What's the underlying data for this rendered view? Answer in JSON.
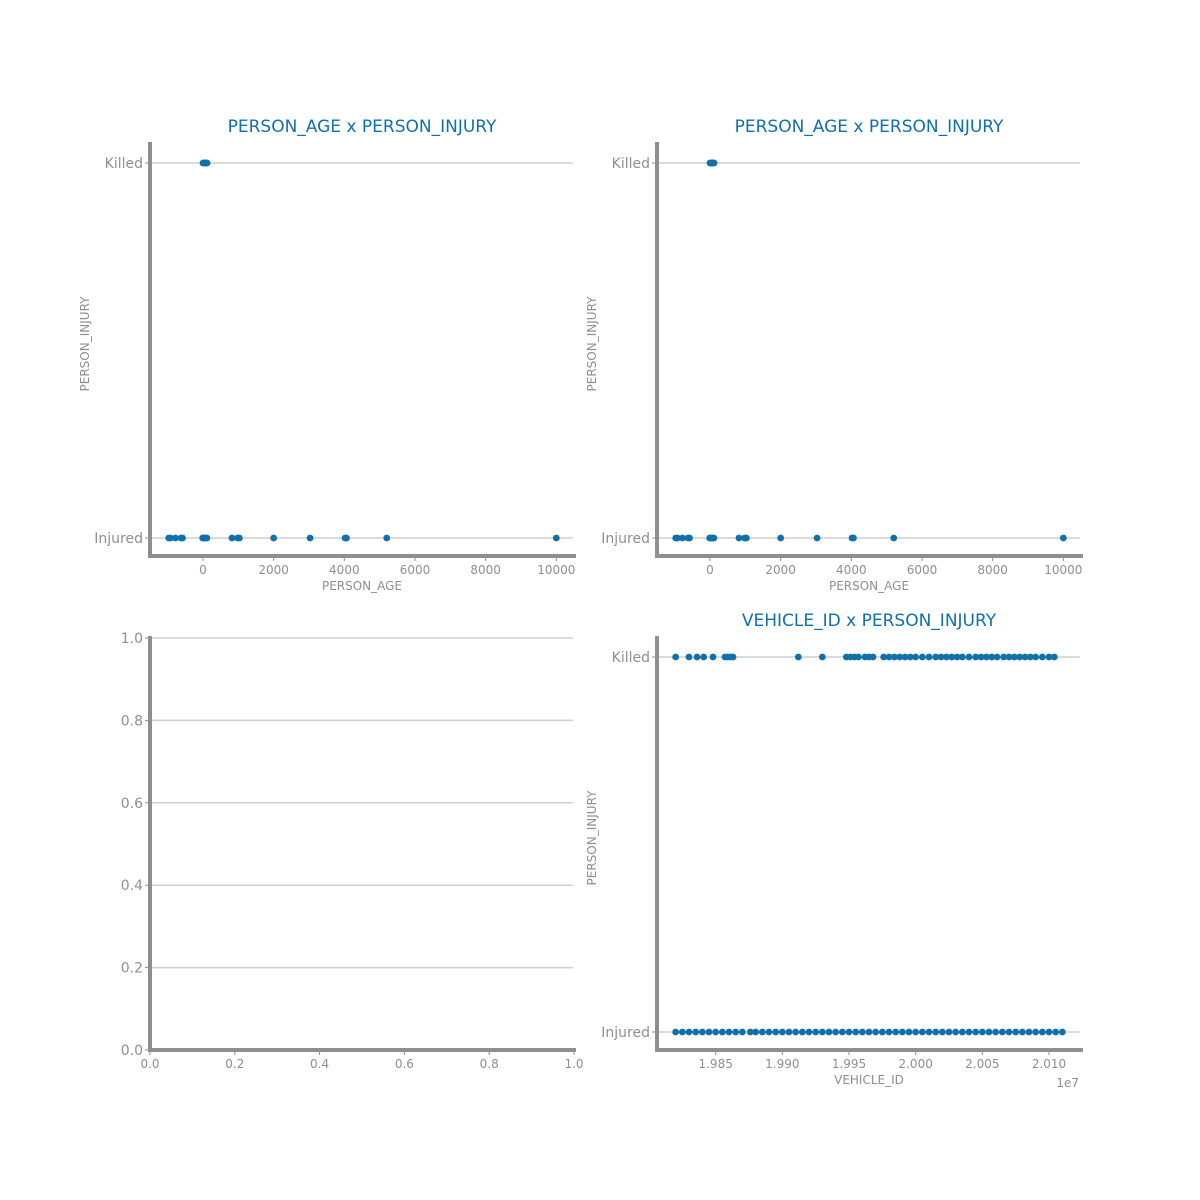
{
  "chart_data": [
    {
      "type": "scatter",
      "title": "PERSON_AGE x PERSON_INJURY",
      "xlabel": "PERSON_AGE",
      "ylabel": "PERSON_INJURY",
      "xlim": [
        -1500,
        10500
      ],
      "x_ticks": [
        0,
        2000,
        4000,
        6000,
        8000,
        10000
      ],
      "x_tick_labels": [
        "0",
        "2000",
        "4000",
        "6000",
        "8000",
        "10000"
      ],
      "x_offset_label": "",
      "y_categories": [
        "Injured",
        "Killed"
      ],
      "grid": true,
      "series": [
        {
          "values": [
            {
              "x": -970,
              "y": "Injured"
            },
            {
              "x": -920,
              "y": "Injured"
            },
            {
              "x": -780,
              "y": "Injured"
            },
            {
              "x": -620,
              "y": "Injured"
            },
            {
              "x": -580,
              "y": "Injured"
            },
            {
              "x": -10,
              "y": "Injured"
            },
            {
              "x": 20,
              "y": "Injured"
            },
            {
              "x": 50,
              "y": "Injured"
            },
            {
              "x": 80,
              "y": "Injured"
            },
            {
              "x": 110,
              "y": "Injured"
            },
            {
              "x": 820,
              "y": "Injured"
            },
            {
              "x": 980,
              "y": "Injured"
            },
            {
              "x": 1030,
              "y": "Injured"
            },
            {
              "x": 2000,
              "y": "Injured"
            },
            {
              "x": 3030,
              "y": "Injured"
            },
            {
              "x": 4020,
              "y": "Injured"
            },
            {
              "x": 4060,
              "y": "Injured"
            },
            {
              "x": 5200,
              "y": "Injured"
            },
            {
              "x": 10000,
              "y": "Injured"
            },
            {
              "x": 0,
              "y": "Killed"
            },
            {
              "x": 25,
              "y": "Killed"
            },
            {
              "x": 50,
              "y": "Killed"
            },
            {
              "x": 75,
              "y": "Killed"
            },
            {
              "x": 100,
              "y": "Killed"
            },
            {
              "x": 115,
              "y": "Killed"
            }
          ]
        }
      ]
    },
    {
      "type": "scatter",
      "title": "PERSON_AGE x PERSON_INJURY",
      "xlabel": "PERSON_AGE",
      "ylabel": "PERSON_INJURY",
      "xlim": [
        -1500,
        10500
      ],
      "x_ticks": [
        0,
        2000,
        4000,
        6000,
        8000,
        10000
      ],
      "x_tick_labels": [
        "0",
        "2000",
        "4000",
        "6000",
        "8000",
        "10000"
      ],
      "x_offset_label": "",
      "y_categories": [
        "Injured",
        "Killed"
      ],
      "grid": true,
      "series": [
        {
          "values": [
            {
              "x": -970,
              "y": "Injured"
            },
            {
              "x": -920,
              "y": "Injured"
            },
            {
              "x": -780,
              "y": "Injured"
            },
            {
              "x": -620,
              "y": "Injured"
            },
            {
              "x": -580,
              "y": "Injured"
            },
            {
              "x": -10,
              "y": "Injured"
            },
            {
              "x": 20,
              "y": "Injured"
            },
            {
              "x": 50,
              "y": "Injured"
            },
            {
              "x": 80,
              "y": "Injured"
            },
            {
              "x": 110,
              "y": "Injured"
            },
            {
              "x": 820,
              "y": "Injured"
            },
            {
              "x": 980,
              "y": "Injured"
            },
            {
              "x": 1030,
              "y": "Injured"
            },
            {
              "x": 2000,
              "y": "Injured"
            },
            {
              "x": 3030,
              "y": "Injured"
            },
            {
              "x": 4020,
              "y": "Injured"
            },
            {
              "x": 4060,
              "y": "Injured"
            },
            {
              "x": 5200,
              "y": "Injured"
            },
            {
              "x": 10000,
              "y": "Injured"
            },
            {
              "x": 0,
              "y": "Killed"
            },
            {
              "x": 25,
              "y": "Killed"
            },
            {
              "x": 50,
              "y": "Killed"
            },
            {
              "x": 75,
              "y": "Killed"
            },
            {
              "x": 100,
              "y": "Killed"
            },
            {
              "x": 115,
              "y": "Killed"
            }
          ]
        }
      ]
    },
    {
      "type": "scatter",
      "title": "",
      "xlabel": "",
      "ylabel": "",
      "xlim": [
        0,
        1
      ],
      "ylim": [
        0,
        1
      ],
      "x_ticks": [
        0,
        0.2,
        0.4,
        0.6,
        0.8,
        1.0
      ],
      "x_tick_labels": [
        "0.0",
        "0.2",
        "0.4",
        "0.6",
        "0.8",
        "1.0"
      ],
      "y_ticks": [
        0,
        0.2,
        0.4,
        0.6,
        0.8,
        1.0
      ],
      "y_tick_labels": [
        "0.0",
        "0.2",
        "0.4",
        "0.6",
        "0.8",
        "1.0"
      ],
      "grid": true,
      "series": []
    },
    {
      "type": "scatter",
      "title": "VEHICLE_ID x PERSON_INJURY",
      "xlabel": "VEHICLE_ID",
      "ylabel": "PERSON_INJURY",
      "xlim": [
        19806000,
        20124000
      ],
      "x_ticks": [
        19850000,
        19900000,
        19950000,
        20000000,
        20050000,
        20100000
      ],
      "x_tick_labels": [
        "1.985",
        "1.990",
        "1.995",
        "2.000",
        "2.005",
        "2.010"
      ],
      "x_offset_label": "1e7",
      "y_categories": [
        "Injured",
        "Killed"
      ],
      "grid": true,
      "series": [
        {
          "values": [
            {
              "x": 19820000,
              "y": "Killed"
            },
            {
              "x": 19830000,
              "y": "Killed"
            },
            {
              "x": 19836000,
              "y": "Killed"
            },
            {
              "x": 19841000,
              "y": "Killed"
            },
            {
              "x": 19848000,
              "y": "Killed"
            },
            {
              "x": 19857000,
              "y": "Killed"
            },
            {
              "x": 19859000,
              "y": "Killed"
            },
            {
              "x": 19861000,
              "y": "Killed"
            },
            {
              "x": 19863000,
              "y": "Killed"
            },
            {
              "x": 19912000,
              "y": "Killed"
            },
            {
              "x": 19930000,
              "y": "Killed"
            },
            {
              "x": 19948000,
              "y": "Killed"
            },
            {
              "x": 19951000,
              "y": "Killed"
            },
            {
              "x": 19954000,
              "y": "Killed"
            },
            {
              "x": 19957000,
              "y": "Killed"
            },
            {
              "x": 19962000,
              "y": "Killed"
            },
            {
              "x": 19965000,
              "y": "Killed"
            },
            {
              "x": 19968000,
              "y": "Killed"
            },
            {
              "x": 19976000,
              "y": "Killed"
            },
            {
              "x": 19980000,
              "y": "Killed"
            },
            {
              "x": 19984000,
              "y": "Killed"
            },
            {
              "x": 19988000,
              "y": "Killed"
            },
            {
              "x": 19992000,
              "y": "Killed"
            },
            {
              "x": 19996000,
              "y": "Killed"
            },
            {
              "x": 20000000,
              "y": "Killed"
            },
            {
              "x": 20005000,
              "y": "Killed"
            },
            {
              "x": 20010000,
              "y": "Killed"
            },
            {
              "x": 20015000,
              "y": "Killed"
            },
            {
              "x": 20019000,
              "y": "Killed"
            },
            {
              "x": 20023000,
              "y": "Killed"
            },
            {
              "x": 20027000,
              "y": "Killed"
            },
            {
              "x": 20031000,
              "y": "Killed"
            },
            {
              "x": 20035000,
              "y": "Killed"
            },
            {
              "x": 20040000,
              "y": "Killed"
            },
            {
              "x": 20045000,
              "y": "Killed"
            },
            {
              "x": 20049000,
              "y": "Killed"
            },
            {
              "x": 20053000,
              "y": "Killed"
            },
            {
              "x": 20057000,
              "y": "Killed"
            },
            {
              "x": 20061000,
              "y": "Killed"
            },
            {
              "x": 20066000,
              "y": "Killed"
            },
            {
              "x": 20070000,
              "y": "Killed"
            },
            {
              "x": 20074000,
              "y": "Killed"
            },
            {
              "x": 20078000,
              "y": "Killed"
            },
            {
              "x": 20082000,
              "y": "Killed"
            },
            {
              "x": 20086000,
              "y": "Killed"
            },
            {
              "x": 20090000,
              "y": "Killed"
            },
            {
              "x": 20095000,
              "y": "Killed"
            },
            {
              "x": 20100000,
              "y": "Killed"
            },
            {
              "x": 20104000,
              "y": "Killed"
            },
            {
              "x": 19820000,
              "y": "Injured"
            },
            {
              "x": 19825000,
              "y": "Injured"
            },
            {
              "x": 19830000,
              "y": "Injured"
            },
            {
              "x": 19835000,
              "y": "Injured"
            },
            {
              "x": 19840000,
              "y": "Injured"
            },
            {
              "x": 19845000,
              "y": "Injured"
            },
            {
              "x": 19850000,
              "y": "Injured"
            },
            {
              "x": 19855000,
              "y": "Injured"
            },
            {
              "x": 19860000,
              "y": "Injured"
            },
            {
              "x": 19865000,
              "y": "Injured"
            },
            {
              "x": 19870000,
              "y": "Injured"
            },
            {
              "x": 19876000,
              "y": "Injured"
            },
            {
              "x": 19880000,
              "y": "Injured"
            },
            {
              "x": 19885000,
              "y": "Injured"
            },
            {
              "x": 19890000,
              "y": "Injured"
            },
            {
              "x": 19895000,
              "y": "Injured"
            },
            {
              "x": 19900000,
              "y": "Injured"
            },
            {
              "x": 19905000,
              "y": "Injured"
            },
            {
              "x": 19910000,
              "y": "Injured"
            },
            {
              "x": 19915000,
              "y": "Injured"
            },
            {
              "x": 19920000,
              "y": "Injured"
            },
            {
              "x": 19925000,
              "y": "Injured"
            },
            {
              "x": 19930000,
              "y": "Injured"
            },
            {
              "x": 19935000,
              "y": "Injured"
            },
            {
              "x": 19940000,
              "y": "Injured"
            },
            {
              "x": 19945000,
              "y": "Injured"
            },
            {
              "x": 19950000,
              "y": "Injured"
            },
            {
              "x": 19955000,
              "y": "Injured"
            },
            {
              "x": 19960000,
              "y": "Injured"
            },
            {
              "x": 19965000,
              "y": "Injured"
            },
            {
              "x": 19970000,
              "y": "Injured"
            },
            {
              "x": 19975000,
              "y": "Injured"
            },
            {
              "x": 19980000,
              "y": "Injured"
            },
            {
              "x": 19985000,
              "y": "Injured"
            },
            {
              "x": 19990000,
              "y": "Injured"
            },
            {
              "x": 19995000,
              "y": "Injured"
            },
            {
              "x": 20000000,
              "y": "Injured"
            },
            {
              "x": 20005000,
              "y": "Injured"
            },
            {
              "x": 20010000,
              "y": "Injured"
            },
            {
              "x": 20015000,
              "y": "Injured"
            },
            {
              "x": 20020000,
              "y": "Injured"
            },
            {
              "x": 20025000,
              "y": "Injured"
            },
            {
              "x": 20030000,
              "y": "Injured"
            },
            {
              "x": 20035000,
              "y": "Injured"
            },
            {
              "x": 20040000,
              "y": "Injured"
            },
            {
              "x": 20045000,
              "y": "Injured"
            },
            {
              "x": 20050000,
              "y": "Injured"
            },
            {
              "x": 20055000,
              "y": "Injured"
            },
            {
              "x": 20060000,
              "y": "Injured"
            },
            {
              "x": 20065000,
              "y": "Injured"
            },
            {
              "x": 20070000,
              "y": "Injured"
            },
            {
              "x": 20075000,
              "y": "Injured"
            },
            {
              "x": 20080000,
              "y": "Injured"
            },
            {
              "x": 20085000,
              "y": "Injured"
            },
            {
              "x": 20090000,
              "y": "Injured"
            },
            {
              "x": 20095000,
              "y": "Injured"
            },
            {
              "x": 20100000,
              "y": "Injured"
            },
            {
              "x": 20105000,
              "y": "Injured"
            },
            {
              "x": 20110000,
              "y": "Injured"
            }
          ]
        }
      ]
    }
  ],
  "colors": {
    "accent": "#1170aa",
    "axis": "#8f8f8f",
    "grid": "#cfcfcf",
    "background": "#ffffff"
  }
}
